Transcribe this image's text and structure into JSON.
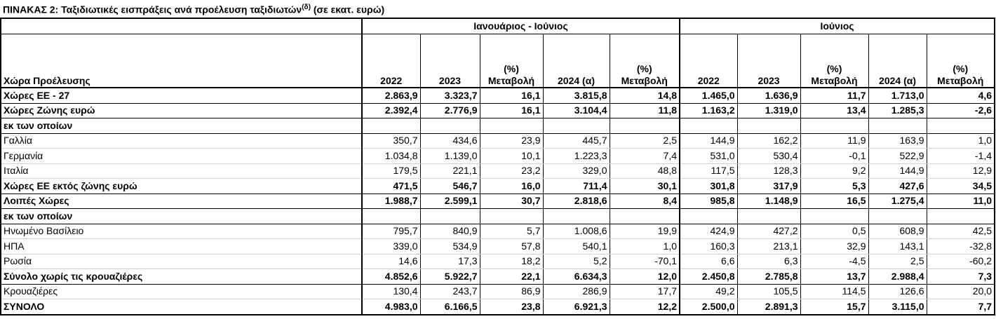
{
  "title": {
    "main": "ΠΙΝΑΚΑΣ 2: Ταξιδιωτικές εισπράξεις ανά προέλευση ταξιδιωτών",
    "superscript": "(δ)",
    "unit": "(σε εκατ. ευρώ)"
  },
  "table": {
    "groups": [
      "Ιανουάριος - Ιούνιος",
      "Ιούνιος"
    ],
    "label_header": "Χώρα Προέλευσης",
    "columns": [
      "2022",
      "2023",
      "(%)\nΜεταβολή",
      "2024 (α)",
      "(%)\nΜεταβολή",
      "2022",
      "2023",
      "(%)\nΜεταβολή",
      "2024 (α)",
      "(%)\nΜεταβολή"
    ],
    "rows": [
      {
        "label": "Χώρες ΕΕ - 27",
        "bold": true,
        "values": [
          "2.863,9",
          "3.323,7",
          "16,1",
          "3.815,8",
          "14,8",
          "1.465,0",
          "1.636,9",
          "11,7",
          "1.713,0",
          "4,6"
        ]
      },
      {
        "label": "Χώρες Ζώνης ευρώ",
        "bold": true,
        "values": [
          "2.392,4",
          "2.776,9",
          "16,1",
          "3.104,4",
          "11,8",
          "1.163,2",
          "1.319,0",
          "13,4",
          "1.285,3",
          "-2,6"
        ]
      },
      {
        "label": "εκ των οποίων",
        "bold": true
      },
      {
        "label": "Γαλλία",
        "bold": false,
        "values": [
          "350,7",
          "434,6",
          "23,9",
          "445,7",
          "2,5",
          "144,9",
          "162,2",
          "11,9",
          "163,9",
          "1,0"
        ]
      },
      {
        "label": "Γερμανία",
        "bold": false,
        "values": [
          "1.034,8",
          "1.139,0",
          "10,1",
          "1.223,3",
          "7,4",
          "531,0",
          "530,4",
          "-0,1",
          "522,9",
          "-1,4"
        ]
      },
      {
        "label": "Ιταλία",
        "bold": false,
        "values": [
          "179,5",
          "221,1",
          "23,2",
          "329,0",
          "48,8",
          "117,5",
          "128,3",
          "9,2",
          "144,9",
          "12,9"
        ]
      },
      {
        "label": "Χώρες ΕΕ εκτός ζώνης ευρώ",
        "bold": true,
        "values": [
          "471,5",
          "546,7",
          "16,0",
          "711,4",
          "30,1",
          "301,8",
          "317,9",
          "5,3",
          "427,6",
          "34,5"
        ]
      },
      {
        "label": "Λοιπές Χώρες",
        "bold": true,
        "values": [
          "1.988,7",
          "2.599,1",
          "30,7",
          "2.818,6",
          "8,4",
          "985,8",
          "1.148,9",
          "16,5",
          "1.275,4",
          "11,0"
        ]
      },
      {
        "label": "εκ των οποίων",
        "bold": true
      },
      {
        "label": "Ηνωμένο Βασίλειο",
        "bold": false,
        "values": [
          "795,7",
          "840,9",
          "5,7",
          "1.008,6",
          "19,9",
          "424,9",
          "427,2",
          "0,5",
          "608,9",
          "42,5"
        ]
      },
      {
        "label": "ΗΠΑ",
        "bold": false,
        "values": [
          "339,0",
          "534,9",
          "57,8",
          "540,1",
          "1,0",
          "160,3",
          "213,1",
          "32,9",
          "143,1",
          "-32,8"
        ]
      },
      {
        "label": "Ρωσία",
        "bold": false,
        "values": [
          "14,6",
          "17,3",
          "18,2",
          "5,2",
          "-70,1",
          "6,6",
          "6,3",
          "-4,5",
          "2,5",
          "-60,2"
        ]
      },
      {
        "label": "Σύνολο χωρίς τις κρουαζιέρες",
        "bold": true,
        "values": [
          "4.852,6",
          "5.922,7",
          "22,1",
          "6.634,3",
          "12,0",
          "2.450,8",
          "2.785,8",
          "13,7",
          "2.988,4",
          "7,3"
        ]
      },
      {
        "label": "Κρουαζιέρες",
        "bold": false,
        "values": [
          "130,4",
          "243,7",
          "86,9",
          "286,9",
          "17,7",
          "49,2",
          "105,5",
          "114,5",
          "126,6",
          "20,0"
        ]
      },
      {
        "label": "ΣΥΝΟΛΟ",
        "bold": true,
        "values": [
          "4.983,0",
          "6.166,5",
          "23,8",
          "6.921,3",
          "12,2",
          "2.500,0",
          "2.891,3",
          "15,7",
          "3.115,0",
          "7,7"
        ]
      }
    ]
  }
}
